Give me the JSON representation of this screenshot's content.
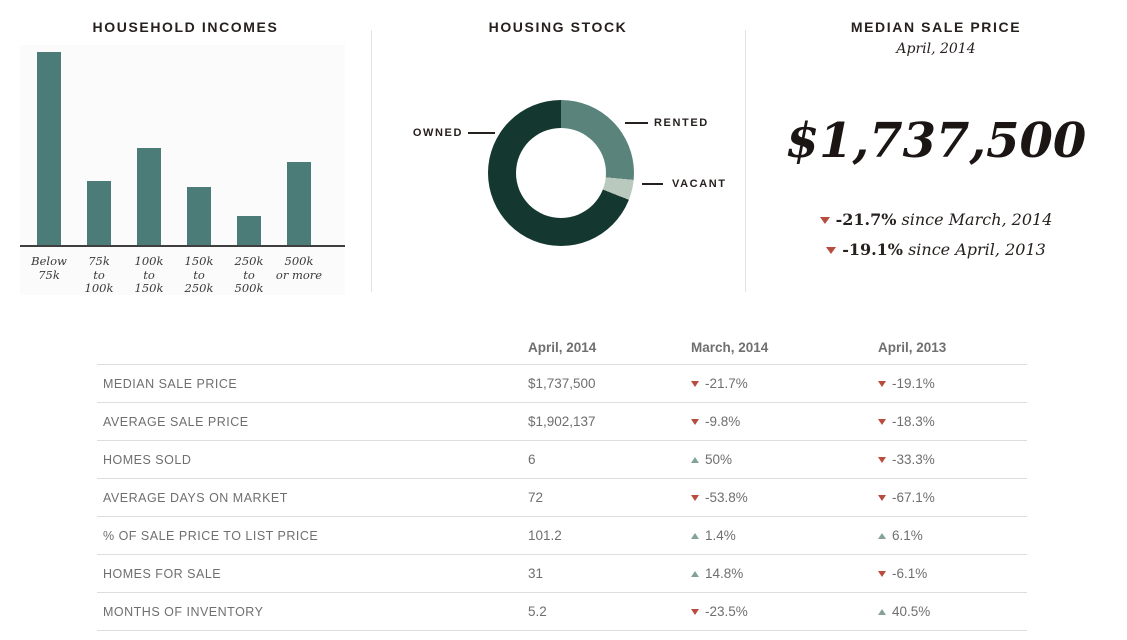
{
  "colors": {
    "bar_teal": "#4c7c78",
    "donut_owned": "#14382f",
    "donut_rented": "#5a837c",
    "donut_vacant": "#b9c9bd",
    "down_red": "#b84c3f",
    "up_green": "#84a396",
    "table_gray": "#6f6f6f",
    "title_dark": "#26201e"
  },
  "chart_data": [
    {
      "type": "bar",
      "title": "HOUSEHOLD INCOMES",
      "categories": [
        [
          "Below",
          "75k"
        ],
        [
          "75k",
          "to",
          "100k"
        ],
        [
          "100k",
          "to",
          "150k"
        ],
        [
          "150k",
          "to",
          "250k"
        ],
        [
          "250k",
          "to",
          "500k"
        ],
        [
          "500k",
          "or more"
        ]
      ],
      "values": [
        100,
        33,
        50,
        30,
        15,
        43
      ],
      "ylim": [
        0,
        100
      ],
      "bar_color": "#4c7c78",
      "xlabel": "",
      "ylabel": ""
    },
    {
      "type": "pie",
      "title": "HOUSING STOCK",
      "donut": true,
      "start_angle_deg_from_top": 0,
      "clockwise": true,
      "segments": [
        {
          "label": "RENTED",
          "pct": 26.5,
          "color": "#5a837c"
        },
        {
          "label": "VACANT",
          "pct": 4.5,
          "color": "#b9c9bd"
        },
        {
          "label": "OWNED",
          "pct": 69.0,
          "color": "#14382f"
        }
      ]
    },
    {
      "type": "table",
      "columns": [
        "April, 2014",
        "March, 2014",
        "April, 2013"
      ],
      "rows": [
        {
          "label": "MEDIAN SALE PRICE",
          "current": "$1,737,500",
          "vs_prev_month": {
            "direction": "down",
            "value": "-21.7%"
          },
          "vs_prev_year": {
            "direction": "down",
            "value": "-19.1%"
          }
        },
        {
          "label": "AVERAGE SALE PRICE",
          "current": "$1,902,137",
          "vs_prev_month": {
            "direction": "down",
            "value": "-9.8%"
          },
          "vs_prev_year": {
            "direction": "down",
            "value": "-18.3%"
          }
        },
        {
          "label": "HOMES SOLD",
          "current": "6",
          "vs_prev_month": {
            "direction": "up",
            "value": "50%"
          },
          "vs_prev_year": {
            "direction": "down",
            "value": "-33.3%"
          }
        },
        {
          "label": "AVERAGE DAYS ON MARKET",
          "current": "72",
          "vs_prev_month": {
            "direction": "down",
            "value": "-53.8%"
          },
          "vs_prev_year": {
            "direction": "down",
            "value": "-67.1%"
          }
        },
        {
          "label": "% OF SALE PRICE TO LIST PRICE",
          "current": "101.2",
          "vs_prev_month": {
            "direction": "up",
            "value": "1.4%"
          },
          "vs_prev_year": {
            "direction": "up",
            "value": "6.1%"
          }
        },
        {
          "label": "HOMES FOR SALE",
          "current": "31",
          "vs_prev_month": {
            "direction": "up",
            "value": "14.8%"
          },
          "vs_prev_year": {
            "direction": "down",
            "value": "-6.1%"
          }
        },
        {
          "label": "MONTHS OF INVENTORY",
          "current": "5.2",
          "vs_prev_month": {
            "direction": "down",
            "value": "-23.5%"
          },
          "vs_prev_year": {
            "direction": "up",
            "value": "40.5%"
          }
        }
      ]
    }
  ],
  "median_panel": {
    "title": "MEDIAN SALE PRICE",
    "subtitle": "April, 2014",
    "value": "$1,737,500",
    "changes": [
      {
        "direction": "down",
        "percent": "-21.7%",
        "suffix": " since March, 2014"
      },
      {
        "direction": "down",
        "percent": "-19.1%",
        "suffix": " since April, 2013"
      }
    ]
  }
}
